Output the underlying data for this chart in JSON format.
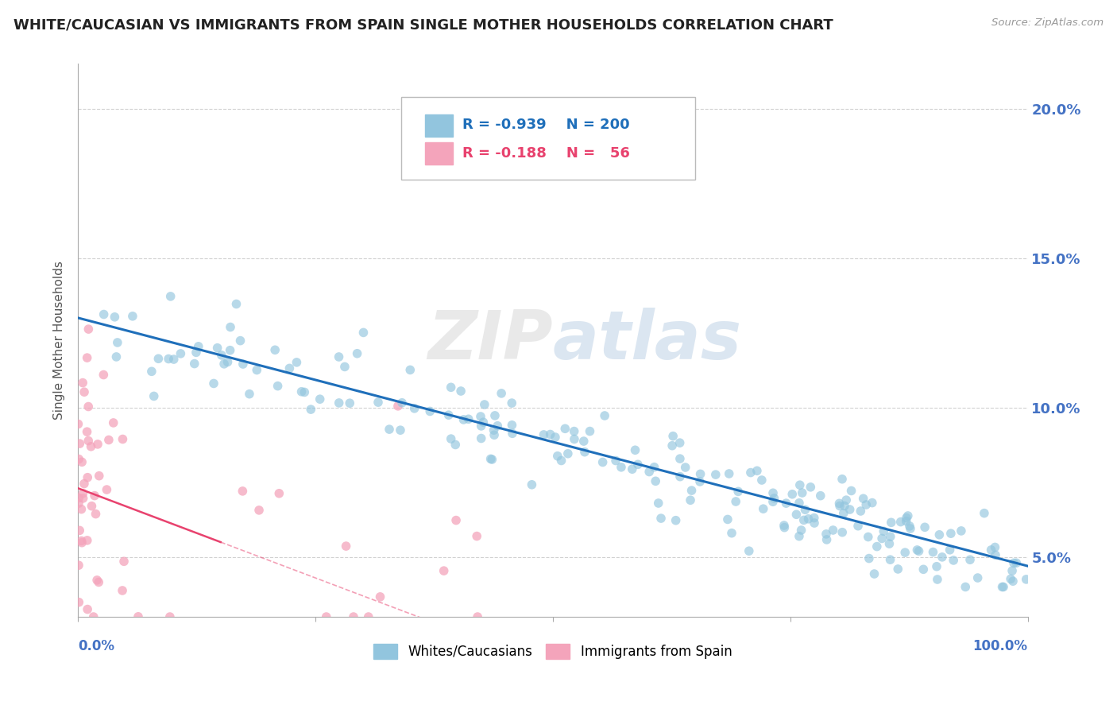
{
  "title": "WHITE/CAUCASIAN VS IMMIGRANTS FROM SPAIN SINGLE MOTHER HOUSEHOLDS CORRELATION CHART",
  "source": "Source: ZipAtlas.com",
  "ylabel": "Single Mother Households",
  "watermark": "ZIPatlas",
  "blue_R": "-0.939",
  "blue_N": "200",
  "pink_R": "-0.188",
  "pink_N": "56",
  "legend_blue": "Whites/Caucasians",
  "legend_pink": "Immigrants from Spain",
  "blue_color": "#92c5de",
  "pink_color": "#f4a4bb",
  "blue_line_color": "#1f6fba",
  "pink_line_color": "#e8426e",
  "bg_color": "#ffffff",
  "grid_color": "#cccccc",
  "title_color": "#222222",
  "axis_label_color": "#4472c4",
  "ytick_right_color": "#4472c4",
  "xlim": [
    0.0,
    1.0
  ],
  "ylim": [
    0.03,
    0.215
  ],
  "yticks": [
    0.05,
    0.1,
    0.15,
    0.2
  ],
  "ytick_labels": [
    "5.0%",
    "10.0%",
    "15.0%",
    "20.0%"
  ]
}
